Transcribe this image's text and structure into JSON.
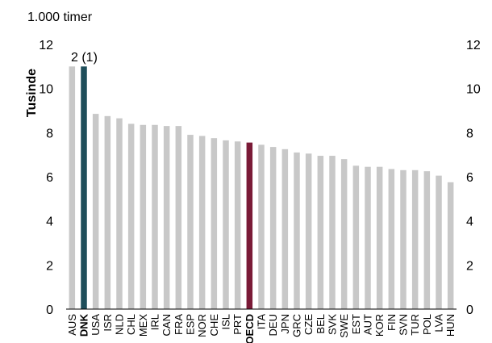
{
  "chart_data": {
    "type": "bar",
    "unit_label": "1.000 timer",
    "ylabel": "Tusinde",
    "ylim": [
      0,
      12
    ],
    "yticks": [
      0,
      2,
      4,
      6,
      8,
      10,
      12
    ],
    "right_axis": true,
    "grid": false,
    "annotation": "2 (1)",
    "categories": [
      "AUS",
      "DNK",
      "USA",
      "ISR",
      "NLD",
      "CHL",
      "MEX",
      "IRL",
      "CAN",
      "FRA",
      "ESP",
      "NOR",
      "CHE",
      "ISL",
      "PRT",
      "OECD",
      "ITA",
      "DEU",
      "JPN",
      "GRC",
      "CZE",
      "BEL",
      "SVK",
      "SWE",
      "EST",
      "AUT",
      "KOR",
      "FIN",
      "SVN",
      "TUR",
      "POL",
      "LVA",
      "HUN"
    ],
    "values": [
      11.0,
      11.0,
      8.85,
      8.75,
      8.65,
      8.4,
      8.35,
      8.35,
      8.3,
      8.3,
      7.9,
      7.85,
      7.75,
      7.65,
      7.6,
      7.55,
      7.45,
      7.35,
      7.25,
      7.1,
      7.05,
      6.95,
      6.95,
      6.8,
      6.5,
      6.45,
      6.45,
      6.35,
      6.3,
      6.3,
      6.25,
      6.05,
      5.75
    ],
    "highlight": {
      "DNK": "#1f4e5a",
      "OECD": "#7a1a37"
    },
    "bold_categories": [
      "DNK",
      "OECD"
    ],
    "bar_color": "#c8c8c8",
    "axis_color": "#000000"
  }
}
